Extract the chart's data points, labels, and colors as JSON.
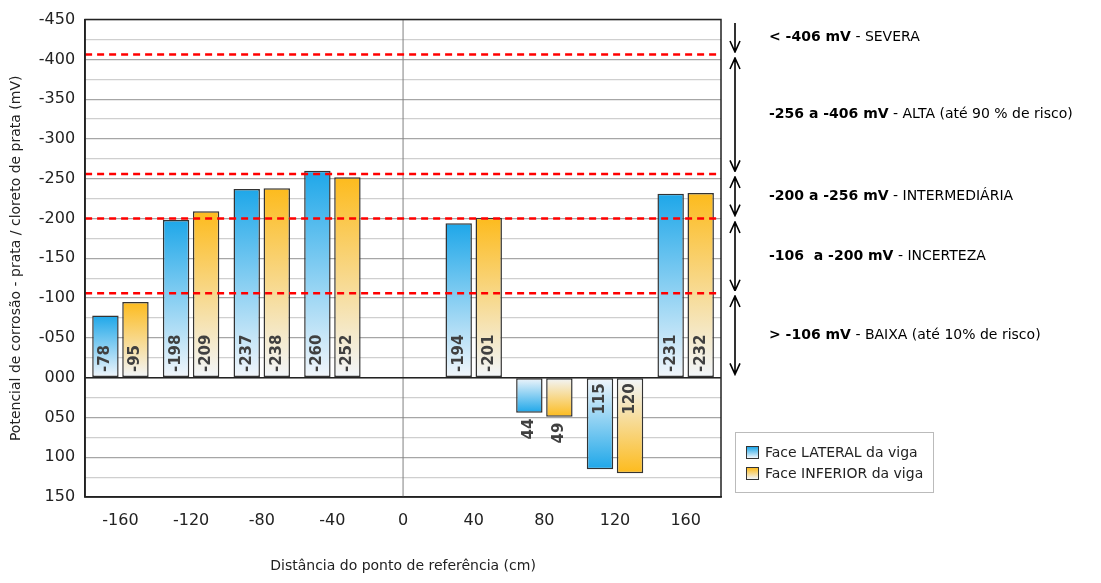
{
  "chart_data": {
    "type": "bar",
    "xlabel": "Distância do ponto de referência (cm)",
    "ylabel": "Potencial de corrosão - prata / cloreto de prata (mV)",
    "categories": [
      "-160",
      "-120",
      "-80",
      "-40",
      "0",
      "40",
      "80",
      "120",
      "160"
    ],
    "series": [
      {
        "name": "Face LATERAL da viga",
        "color": "#1ea7e9",
        "values": [
          -78,
          -198,
          -237,
          -260,
          null,
          -194,
          44,
          115,
          -231
        ]
      },
      {
        "name": "Face INFERIOR da viga",
        "color": "#fdbb1d",
        "values": [
          -95,
          -209,
          -238,
          -252,
          null,
          -201,
          49,
          120,
          -232
        ]
      }
    ],
    "ylim": [
      150,
      -450
    ],
    "yticks": [
      {
        "value": -450,
        "label": "-450"
      },
      {
        "value": -425,
        "label": null
      },
      {
        "value": -400,
        "label": "-400"
      },
      {
        "value": -375,
        "label": null
      },
      {
        "value": -350,
        "label": "-350"
      },
      {
        "value": -325,
        "label": null
      },
      {
        "value": -300,
        "label": "-300"
      },
      {
        "value": -275,
        "label": null
      },
      {
        "value": -250,
        "label": "-250"
      },
      {
        "value": -225,
        "label": null
      },
      {
        "value": -200,
        "label": "-200"
      },
      {
        "value": -175,
        "label": null
      },
      {
        "value": -150,
        "label": "-150"
      },
      {
        "value": -125,
        "label": null
      },
      {
        "value": -100,
        "label": "-100"
      },
      {
        "value": -75,
        "label": null
      },
      {
        "value": -50,
        "label": "-050"
      },
      {
        "value": -25,
        "label": null
      },
      {
        "value": 0,
        "label": "000"
      },
      {
        "value": 25,
        "label": null
      },
      {
        "value": 50,
        "label": "050"
      },
      {
        "value": 75,
        "label": null
      },
      {
        "value": 100,
        "label": "100"
      },
      {
        "value": 125,
        "label": null
      },
      {
        "value": 150,
        "label": "150"
      }
    ],
    "grid": "y",
    "legend": "bottom right",
    "data_labels": true,
    "ref_lines": [
      {
        "axis": "x",
        "value": "0",
        "color": "#808080",
        "line_style": "solid"
      },
      {
        "axis": "y",
        "value": -406,
        "color": "#ff0000",
        "line_style": "dashed"
      },
      {
        "axis": "y",
        "value": -256,
        "color": "#ff0000",
        "line_style": "dashed"
      },
      {
        "axis": "y",
        "value": -200,
        "color": "#ff0000",
        "line_style": "dashed"
      },
      {
        "axis": "y",
        "value": -106,
        "color": "#ff0000",
        "line_style": "dashed"
      }
    ],
    "annotations": [
      "< -406 mV - SEVERA",
      "-256 a -406 mV - ALTA (até 90 % de risco)",
      "-200 a -256 mV - INTERMEDIÁRIA",
      "-106  a -200 mV - INCERTEZA",
      "> -106 mV - BAIXA (até 10% de risco)"
    ]
  }
}
